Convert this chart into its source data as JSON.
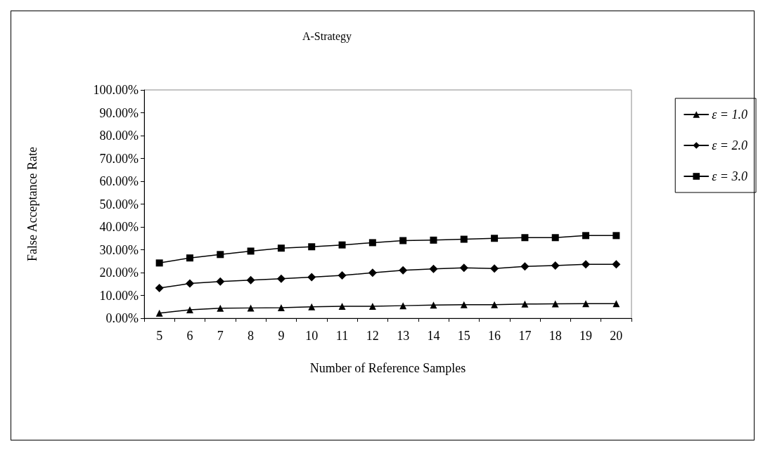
{
  "chart_data": {
    "type": "line",
    "title": "A-Strategy",
    "xlabel": "Number of Reference Samples",
    "ylabel": "False Acceptance Rate",
    "categories": [
      "5",
      "6",
      "7",
      "8",
      "9",
      "10",
      "11",
      "12",
      "13",
      "14",
      "15",
      "16",
      "17",
      "18",
      "19",
      "20"
    ],
    "series": [
      {
        "name": "ε = 1.0",
        "color": "#000000",
        "marker": "triangle",
        "values": [
          2.2,
          3.7,
          4.4,
          4.5,
          4.6,
          5.0,
          5.2,
          5.2,
          5.5,
          5.8,
          5.9,
          5.9,
          6.2,
          6.3,
          6.4,
          6.4
        ]
      },
      {
        "name": "ε = 2.0",
        "color": "#000000",
        "marker": "diamond",
        "values": [
          13.2,
          15.2,
          16.1,
          16.7,
          17.3,
          18.0,
          18.8,
          19.9,
          21.0,
          21.6,
          22.1,
          21.8,
          22.7,
          23.1,
          23.6,
          23.6
        ]
      },
      {
        "name": "ε = 3.0",
        "color": "#000000",
        "marker": "square",
        "values": [
          24.2,
          26.4,
          27.9,
          29.4,
          30.7,
          31.3,
          32.1,
          33.1,
          34.0,
          34.2,
          34.6,
          35.0,
          35.3,
          35.3,
          36.2,
          36.2
        ]
      }
    ],
    "ylim": [
      0,
      100
    ],
    "yticks": [
      {
        "value": 0,
        "label": "0.00%"
      },
      {
        "value": 10,
        "label": "10.00%"
      },
      {
        "value": 20,
        "label": "20.00%"
      },
      {
        "value": 30,
        "label": "30.00%"
      },
      {
        "value": 40,
        "label": "40.00%"
      },
      {
        "value": 50,
        "label": "50.00%"
      },
      {
        "value": 60,
        "label": "60.00%"
      },
      {
        "value": 70,
        "label": "70.00%"
      },
      {
        "value": 80,
        "label": "80.00%"
      },
      {
        "value": 90,
        "label": "90.00%"
      },
      {
        "value": 100,
        "label": "100.00%"
      }
    ],
    "grid": false,
    "legend": "right",
    "line_style": "solid"
  }
}
